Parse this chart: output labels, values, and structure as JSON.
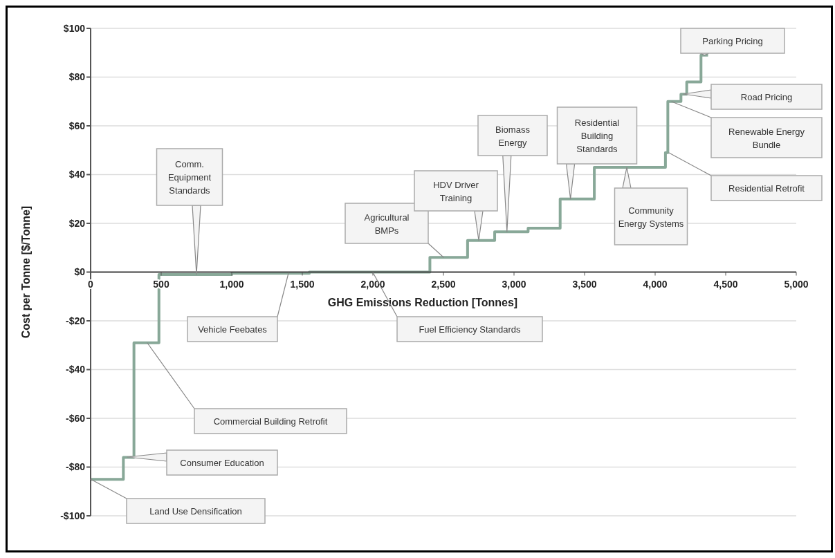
{
  "chart_data": {
    "type": "step",
    "xlabel": "GHG Emissions Reduction [Tonnes]",
    "ylabel": "Cost per Tonne [$/Tonne]",
    "x": [
      0,
      232,
      307,
      484,
      1000,
      1550,
      2404,
      2671,
      2863,
      3100,
      3327,
      3569,
      4073,
      4090,
      4183,
      4224,
      4325,
      4375
    ],
    "series": [
      {
        "color": "#88a898",
        "values": [
          -85,
          -76,
          -29,
          -1,
          -0.5,
          0,
          6,
          13,
          16.5,
          18,
          30,
          43,
          49,
          70,
          73,
          78,
          89,
          89
        ]
      }
    ],
    "xlim": [
      0,
      5000
    ],
    "ylim": [
      -100,
      100
    ],
    "xticks": [
      0,
      500,
      {
        "value": 1000,
        "label": "1,000"
      },
      {
        "value": 1500,
        "label": "1,500"
      },
      {
        "value": 2000,
        "label": "2,000"
      },
      {
        "value": 2500,
        "label": "2,500"
      },
      {
        "value": 3000,
        "label": "3,000"
      },
      {
        "value": 3500,
        "label": "3,500"
      },
      {
        "value": 4000,
        "label": "4,000"
      },
      {
        "value": 4500,
        "label": "4,500"
      },
      {
        "value": 5000,
        "label": "5,000"
      }
    ],
    "yticks": [
      {
        "value": -100,
        "label": "-$100"
      },
      {
        "value": -80,
        "label": "-$80"
      },
      {
        "value": -60,
        "label": "-$60"
      },
      {
        "value": -40,
        "label": "-$40"
      },
      {
        "value": -20,
        "label": "-$20"
      },
      {
        "value": 0,
        "label": "$0"
      },
      {
        "value": 20,
        "label": "$20"
      },
      {
        "value": 40,
        "label": "$40"
      },
      {
        "value": 60,
        "label": "$60"
      },
      {
        "value": 80,
        "label": "$80"
      },
      {
        "value": 100,
        "label": "$100"
      }
    ],
    "grid": "y",
    "annotations": [
      "Land Use Densification",
      "Consumer Education",
      "Commercial Building Retrofit",
      {
        "text": "Comm. Equipment Standards",
        "x": 750,
        "y": -1
      },
      "Vehicle Feebates",
      "Fuel Efficiency Standards",
      "Agricultural BMPs",
      {
        "text": "HDV Driver Training",
        "x": 2750,
        "y": 13
      },
      {
        "text": "Biomass Energy",
        "x": 2950,
        "y": 16.5
      },
      {
        "text": "Residential Building Standards",
        "x": 3400,
        "y": 30
      },
      "Community Energy Systems",
      "Residential Retrofit",
      "Renewable Energy Bundle",
      "Road Pricing",
      {
        "text": "Parking Pricing",
        "x": 4350,
        "y": 89
      }
    ]
  }
}
